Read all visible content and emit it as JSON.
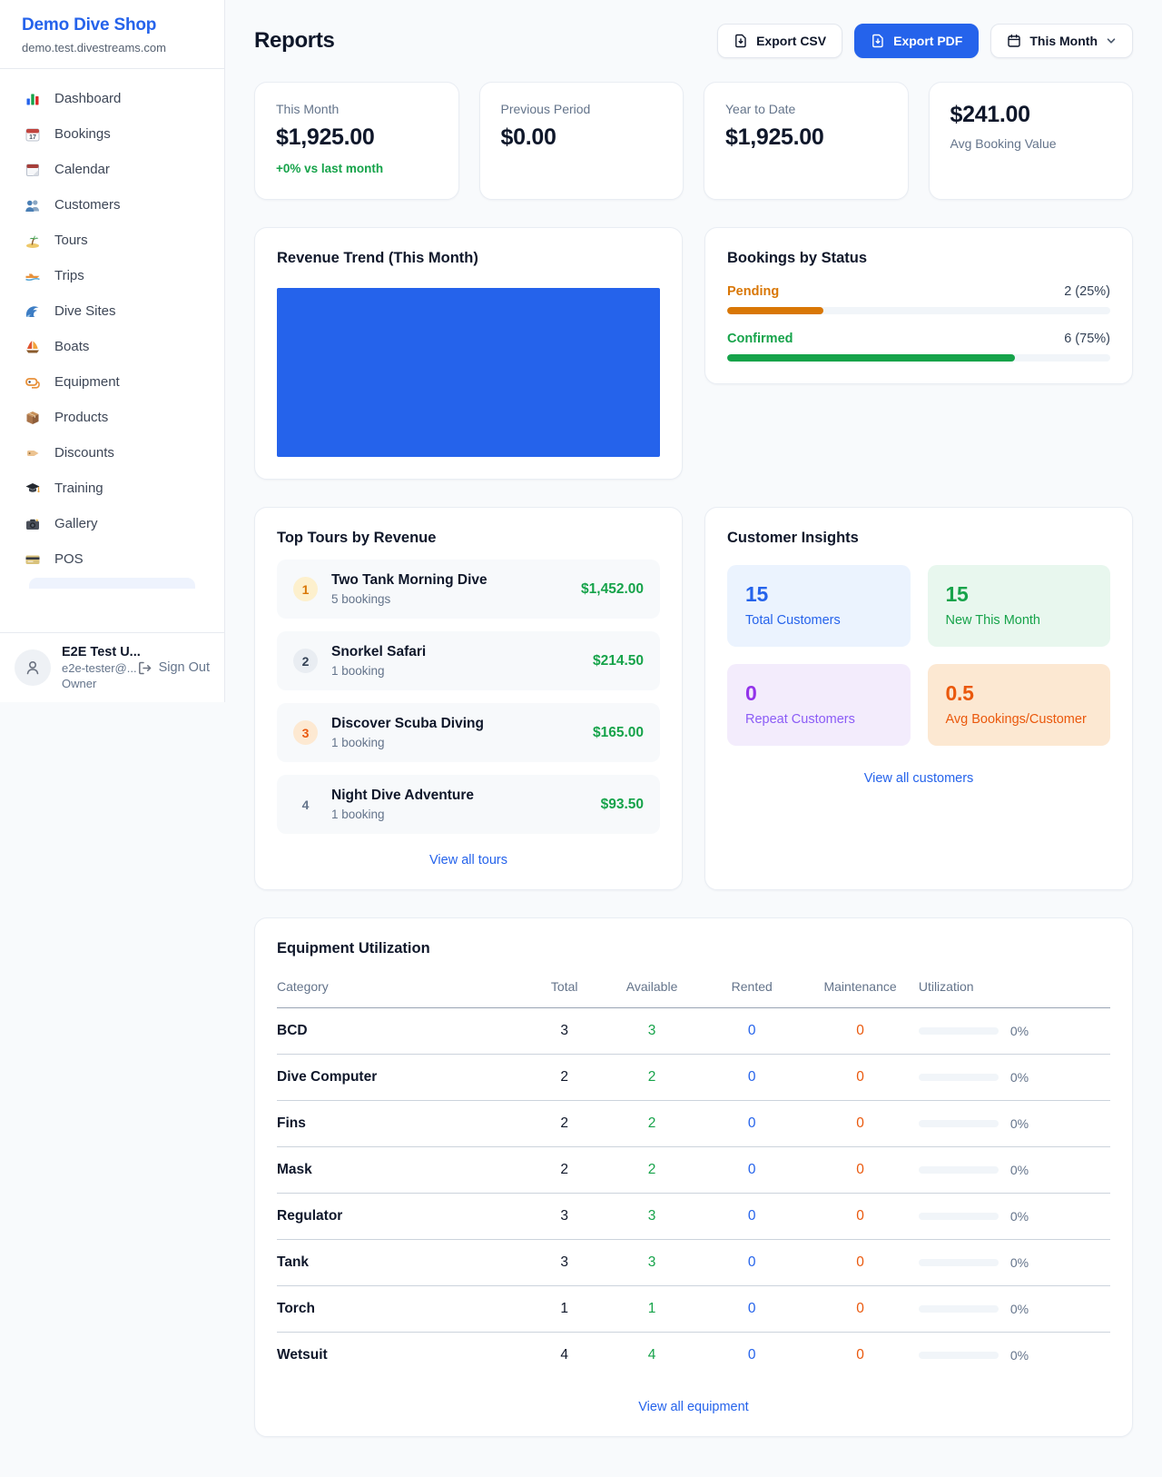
{
  "colors": {
    "accent_blue": "#2563eb",
    "green": "#16a34a",
    "orange_pending": "#d97706",
    "orange_deep": "#ea580c",
    "purple": "#9333ea",
    "page_bg": "#f8fafc"
  },
  "sidebar": {
    "brand": {
      "name": "Demo Dive Shop",
      "domain": "demo.test.divestreams.com"
    },
    "nav": [
      {
        "icon": "bar-chart-icon",
        "label": "Dashboard"
      },
      {
        "icon": "calendar-date-icon",
        "label": "Bookings"
      },
      {
        "icon": "tear-calendar-icon",
        "label": "Calendar"
      },
      {
        "icon": "people-icon",
        "label": "Customers"
      },
      {
        "icon": "island-icon",
        "label": "Tours"
      },
      {
        "icon": "speedboat-icon",
        "label": "Trips"
      },
      {
        "icon": "wave-icon",
        "label": "Dive Sites"
      },
      {
        "icon": "sailboat-icon",
        "label": "Boats"
      },
      {
        "icon": "dive-mask-icon",
        "label": "Equipment"
      },
      {
        "icon": "package-icon",
        "label": "Products"
      },
      {
        "icon": "tag-icon",
        "label": "Discounts"
      },
      {
        "icon": "grad-cap-icon",
        "label": "Training"
      },
      {
        "icon": "camera-icon",
        "label": "Gallery"
      },
      {
        "icon": "credit-card-icon",
        "label": "POS"
      }
    ],
    "user": {
      "name": "E2E Test U...",
      "email": "e2e-tester@...",
      "role": "Owner",
      "sign_out": "Sign Out"
    }
  },
  "header": {
    "title": "Reports",
    "export_csv": "Export CSV",
    "export_pdf": "Export PDF",
    "period": "This Month"
  },
  "stats": [
    {
      "label": "This Month",
      "value": "$1,925.00",
      "delta": "+0% vs last month"
    },
    {
      "label": "Previous Period",
      "value": "$0.00"
    },
    {
      "label": "Year to Date",
      "value": "$1,925.00"
    },
    {
      "label": "Avg Booking Value",
      "value": "$241.00"
    }
  ],
  "revenue_trend": {
    "title": "Revenue Trend (This Month)"
  },
  "bookings_by_status": {
    "title": "Bookings by Status",
    "rows": [
      {
        "label": "Pending",
        "count": "2 (25%)",
        "pct": 25,
        "color": "#d97706"
      },
      {
        "label": "Confirmed",
        "count": "6 (75%)",
        "pct": 75,
        "color": "#16a34a"
      }
    ]
  },
  "chart_data": [
    {
      "type": "bar",
      "title": "Revenue Trend (This Month)",
      "categories": [
        "This Month"
      ],
      "values": [
        1925
      ],
      "xlabel": "",
      "ylabel": "",
      "bar_color": "#2563eb",
      "layout": "single full-width bar filling plot area, no visible axes or gridlines"
    },
    {
      "type": "bar",
      "title": "Bookings by Status",
      "categories": [
        "Pending",
        "Confirmed"
      ],
      "values": [
        2,
        6
      ],
      "percentages": [
        25,
        75
      ],
      "colors": [
        "#d97706",
        "#16a34a"
      ],
      "layout": "horizontal progress bars with right-aligned count labels"
    }
  ],
  "top_tours": {
    "title": "Top Tours by Revenue",
    "items": [
      {
        "rank": "1",
        "name": "Two Tank Morning Dive",
        "sub": "5 bookings",
        "amount": "$1,452.00"
      },
      {
        "rank": "2",
        "name": "Snorkel Safari",
        "sub": "1 booking",
        "amount": "$214.50"
      },
      {
        "rank": "3",
        "name": "Discover Scuba Diving",
        "sub": "1 booking",
        "amount": "$165.00"
      },
      {
        "rank": "4",
        "name": "Night Dive Adventure",
        "sub": "1 booking",
        "amount": "$93.50"
      }
    ],
    "view_all": "View all tours"
  },
  "customer_insights": {
    "title": "Customer Insights",
    "tiles": [
      {
        "value": "15",
        "label": "Total Customers"
      },
      {
        "value": "15",
        "label": "New This Month"
      },
      {
        "value": "0",
        "label": "Repeat Customers"
      },
      {
        "value": "0.5",
        "label": "Avg Bookings/Customer"
      }
    ],
    "view_all": "View all customers"
  },
  "equipment": {
    "title": "Equipment Utilization",
    "columns": [
      "Category",
      "Total",
      "Available",
      "Rented",
      "Maintenance",
      "Utilization"
    ],
    "rows": [
      {
        "name": "BCD",
        "total": "3",
        "available": "3",
        "rented": "0",
        "maintenance": "0",
        "utilization": "0%",
        "util_pct": 0
      },
      {
        "name": "Dive Computer",
        "total": "2",
        "available": "2",
        "rented": "0",
        "maintenance": "0",
        "utilization": "0%",
        "util_pct": 0
      },
      {
        "name": "Fins",
        "total": "2",
        "available": "2",
        "rented": "0",
        "maintenance": "0",
        "utilization": "0%",
        "util_pct": 0
      },
      {
        "name": "Mask",
        "total": "2",
        "available": "2",
        "rented": "0",
        "maintenance": "0",
        "utilization": "0%",
        "util_pct": 0
      },
      {
        "name": "Regulator",
        "total": "3",
        "available": "3",
        "rented": "0",
        "maintenance": "0",
        "utilization": "0%",
        "util_pct": 0
      },
      {
        "name": "Tank",
        "total": "3",
        "available": "3",
        "rented": "0",
        "maintenance": "0",
        "utilization": "0%",
        "util_pct": 0
      },
      {
        "name": "Torch",
        "total": "1",
        "available": "1",
        "rented": "0",
        "maintenance": "0",
        "utilization": "0%",
        "util_pct": 0
      },
      {
        "name": "Wetsuit",
        "total": "4",
        "available": "4",
        "rented": "0",
        "maintenance": "0",
        "utilization": "0%",
        "util_pct": 0
      }
    ],
    "view_all": "View all equipment"
  }
}
